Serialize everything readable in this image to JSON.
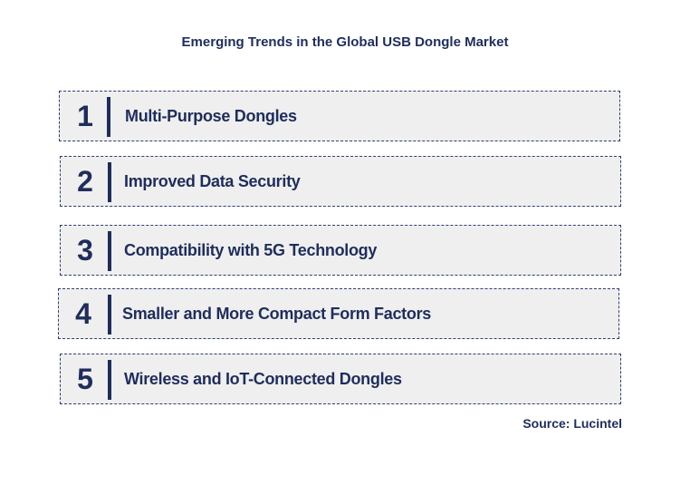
{
  "title": "Emerging Trends in the Global USB Dongle Market",
  "trends": [
    {
      "number": "1",
      "label": "Multi-Purpose Dongles"
    },
    {
      "number": "2",
      "label": "Improved Data Security"
    },
    {
      "number": "3",
      "label": "Compatibility with 5G Technology"
    },
    {
      "number": "4",
      "label": "Smaller and More Compact Form Factors"
    },
    {
      "number": "5",
      "label": "Wireless and IoT-Connected Dongles"
    }
  ],
  "source": "Source: Lucintel",
  "colors": {
    "text": "#1f2d5c",
    "box_fill": "#efefef",
    "box_border": "#2e3f73"
  }
}
